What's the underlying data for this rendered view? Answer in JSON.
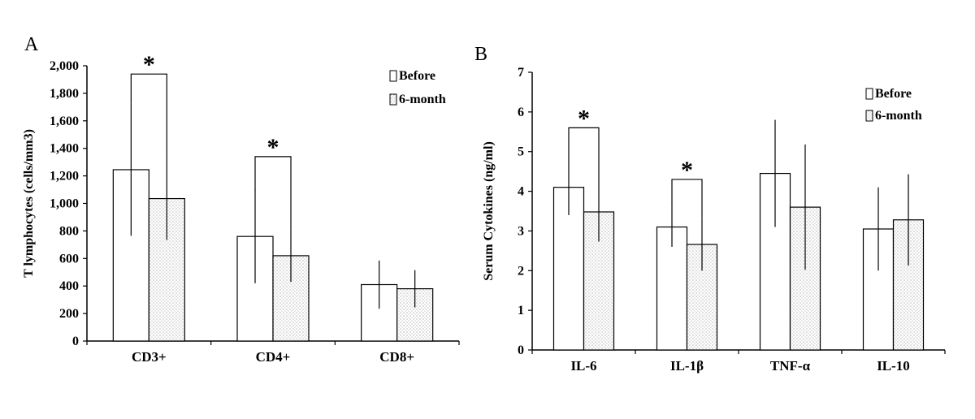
{
  "chart_data": [
    {
      "type": "bar",
      "panel": "A",
      "ylabel": "T lymphocytes (cells/mm3)",
      "xlabel": "",
      "categories": [
        "CD3+",
        "CD4+",
        "CD8+"
      ],
      "ylim": [
        0,
        2000
      ],
      "yticks": [
        0,
        200,
        400,
        600,
        800,
        1000,
        1200,
        1400,
        1600,
        1800,
        2000
      ],
      "ytick_labels": [
        "0",
        "200",
        "400",
        "600",
        "800",
        "1,000",
        "1,200",
        "1,400",
        "1,600",
        "1,800",
        "2,000"
      ],
      "legend_position": "top-right",
      "grid": false,
      "series": [
        {
          "name": "Before",
          "pattern": "open",
          "values": [
            1245,
            760,
            410
          ],
          "error": [
            480,
            340,
            175
          ]
        },
        {
          "name": "6-month",
          "pattern": "dotted",
          "values": [
            1035,
            620,
            380
          ],
          "error": [
            300,
            190,
            135
          ]
        }
      ],
      "annotations": [
        {
          "text": "*",
          "category_index": 0,
          "bracket_top": 1940,
          "left_drop": 1725,
          "right_drop": 1335
        },
        {
          "text": "*",
          "category_index": 1,
          "bracket_top": 1340,
          "left_drop": 1095,
          "right_drop": 810
        }
      ]
    },
    {
      "type": "bar",
      "panel": "B",
      "ylabel": "Serum Cytokines (ng/ml)",
      "xlabel": "",
      "categories": [
        "IL-6",
        "IL-1β",
        "TNF-α",
        "IL-10"
      ],
      "ylim": [
        0,
        7
      ],
      "yticks": [
        0,
        1,
        2,
        3,
        4,
        5,
        6,
        7
      ],
      "ytick_labels": [
        "0",
        "1",
        "2",
        "3",
        "4",
        "5",
        "6",
        "7"
      ],
      "legend_position": "top-right",
      "grid": false,
      "series": [
        {
          "name": "Before",
          "pattern": "open",
          "values": [
            4.1,
            3.1,
            4.45,
            3.05
          ],
          "error": [
            0.7,
            0.5,
            1.35,
            1.05
          ]
        },
        {
          "name": "6-month",
          "pattern": "dotted",
          "values": [
            3.48,
            2.66,
            3.6,
            3.28
          ],
          "error": [
            0.75,
            0.66,
            1.58,
            1.15
          ]
        }
      ],
      "annotations": [
        {
          "text": "*",
          "category_index": 0,
          "bracket_top": 5.6,
          "left_drop": 4.8,
          "right_drop": 4.22
        },
        {
          "text": "*",
          "category_index": 1,
          "bracket_top": 4.3,
          "left_drop": 3.6,
          "right_drop": 3.32
        }
      ]
    }
  ]
}
